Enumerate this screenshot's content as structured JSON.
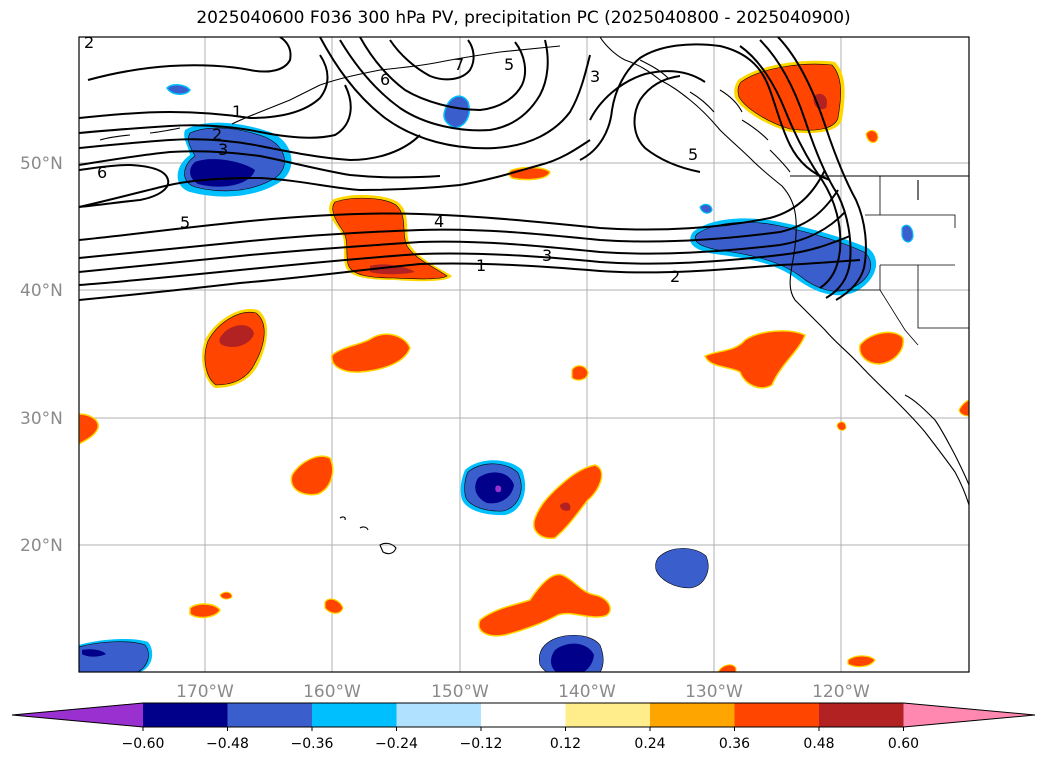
{
  "title": "2025040600 F036 300 hPa PV, precipitation PC (2025040800 - 2025040900)",
  "lat_labels": [
    "50°N",
    "40°N",
    "30°N",
    "20°N"
  ],
  "lon_labels": [
    "170°W",
    "160°W",
    "150°W",
    "140°W",
    "130°W",
    "120°W"
  ],
  "colorbar": {
    "ticks": [
      "−0.60",
      "−0.48",
      "−0.36",
      "−0.24",
      "−0.12",
      "0.12",
      "0.24",
      "0.36",
      "0.48",
      "0.60"
    ],
    "colors": [
      "#9a30d0",
      "#00008b",
      "#3a5fcd",
      "#00bfff",
      "#b0e2ff",
      "#ffffff",
      "#ffec8b",
      "#ffa500",
      "#ff4500",
      "#b22222",
      "#ff88b0"
    ]
  },
  "contour_labels": [
    "1",
    "2",
    "3",
    "4",
    "5",
    "6",
    "7",
    "5",
    "6",
    "3",
    "2",
    "1",
    "3",
    "5",
    "4"
  ],
  "colors": {
    "dark_blue": "#00008b",
    "blue": "#3a5fcd",
    "light_blue": "#00bfff",
    "orange_red": "#ff4500",
    "dark_red": "#b22222",
    "gold": "#ffd700"
  }
}
